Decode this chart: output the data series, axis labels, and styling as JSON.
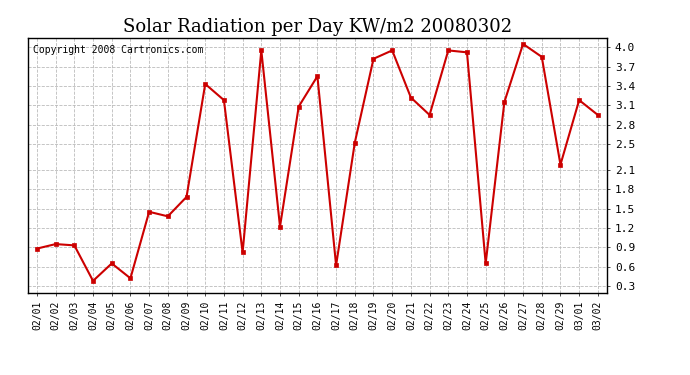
{
  "title": "Solar Radiation per Day KW/m2 20080302",
  "copyright": "Copyright 2008 Cartronics.com",
  "dates": [
    "02/01",
    "02/02",
    "02/03",
    "02/04",
    "02/05",
    "02/06",
    "02/07",
    "02/08",
    "02/09",
    "02/10",
    "02/11",
    "02/12",
    "02/13",
    "02/14",
    "02/15",
    "02/16",
    "02/17",
    "02/18",
    "02/19",
    "02/20",
    "02/21",
    "02/22",
    "02/23",
    "02/24",
    "02/25",
    "02/26",
    "02/27",
    "02/28",
    "02/29",
    "03/01",
    "03/02"
  ],
  "values": [
    0.88,
    0.95,
    0.93,
    0.38,
    0.65,
    0.42,
    1.45,
    1.38,
    1.68,
    3.43,
    3.18,
    0.82,
    3.95,
    1.22,
    3.08,
    3.55,
    0.62,
    2.52,
    3.82,
    3.95,
    3.22,
    2.95,
    3.95,
    3.92,
    0.65,
    3.15,
    4.05,
    3.85,
    2.18,
    3.18,
    2.95
  ],
  "line_color": "#cc0000",
  "marker": "s",
  "marker_size": 3,
  "bg_color": "#ffffff",
  "grid_color": "#bbbbbb",
  "ylim": [
    0.2,
    4.15
  ],
  "ytick_positions": [
    0.3,
    0.6,
    0.9,
    1.2,
    1.5,
    1.8,
    2.1,
    2.5,
    2.8,
    3.1,
    3.4,
    3.7,
    4.0
  ],
  "ytick_labels": [
    "0.3",
    "0.6",
    "0.9",
    "1.2",
    "1.5",
    "1.8",
    "2.1",
    "2.5",
    "2.8",
    "3.1",
    "3.4",
    "3.7",
    "4.0"
  ],
  "title_fontsize": 13,
  "copyright_fontsize": 7,
  "tick_fontsize": 7,
  "ytick_fontsize": 8
}
